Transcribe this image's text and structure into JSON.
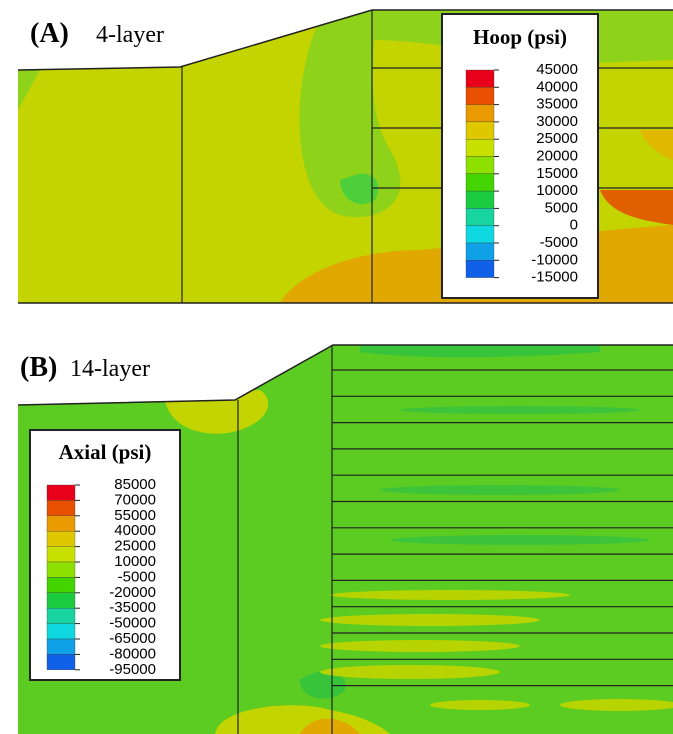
{
  "panel_a": {
    "label": "(A)",
    "title": "4-layer",
    "legend": {
      "title": "Hoop (psi)",
      "labels": [
        45000,
        40000,
        35000,
        30000,
        25000,
        20000,
        15000,
        10000,
        5000,
        0,
        -5000,
        -10000,
        -15000
      ]
    }
  },
  "panel_b": {
    "label": "(B)",
    "title": "14-layer",
    "legend": {
      "title": "Axial (psi)",
      "labels": [
        85000,
        70000,
        55000,
        40000,
        25000,
        10000,
        -5000,
        -20000,
        -35000,
        -50000,
        -65000,
        -80000,
        -95000
      ]
    }
  }
}
